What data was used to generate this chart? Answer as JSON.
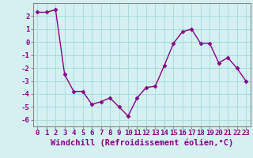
{
  "x": [
    0,
    1,
    2,
    3,
    4,
    5,
    6,
    7,
    8,
    9,
    10,
    11,
    12,
    13,
    14,
    15,
    16,
    17,
    18,
    19,
    20,
    21,
    22,
    23
  ],
  "y": [
    2.3,
    2.3,
    2.5,
    -2.5,
    -3.8,
    -3.8,
    -4.8,
    -4.6,
    -4.3,
    -5.0,
    -5.7,
    -4.3,
    -3.5,
    -3.4,
    -1.8,
    -0.1,
    0.8,
    1.0,
    -0.1,
    -0.1,
    -1.6,
    -1.2,
    -2.0,
    -3.0
  ],
  "line_color": "#880088",
  "marker": "D",
  "markersize": 2.5,
  "linewidth": 1.0,
  "xlabel": "Windchill (Refroidissement éolien,°C)",
  "xlabel_fontsize": 7.5,
  "xlim": [
    -0.5,
    23.5
  ],
  "ylim": [
    -6.5,
    3.0
  ],
  "yticks": [
    -6,
    -5,
    -4,
    -3,
    -2,
    -1,
    0,
    1,
    2
  ],
  "xticks": [
    0,
    1,
    2,
    3,
    4,
    5,
    6,
    7,
    8,
    9,
    10,
    11,
    12,
    13,
    14,
    15,
    16,
    17,
    18,
    19,
    20,
    21,
    22,
    23
  ],
  "xtick_labels": [
    "0",
    "1",
    "2",
    "3",
    "4",
    "5",
    "6",
    "7",
    "8",
    "9",
    "10",
    "11",
    "12",
    "13",
    "14",
    "15",
    "16",
    "17",
    "18",
    "19",
    "20",
    "21",
    "22",
    "23"
  ],
  "bg_color": "#d4f0f0",
  "grid_color": "#aadddd",
  "tick_fontsize": 6.5,
  "spine_color": "#888888"
}
